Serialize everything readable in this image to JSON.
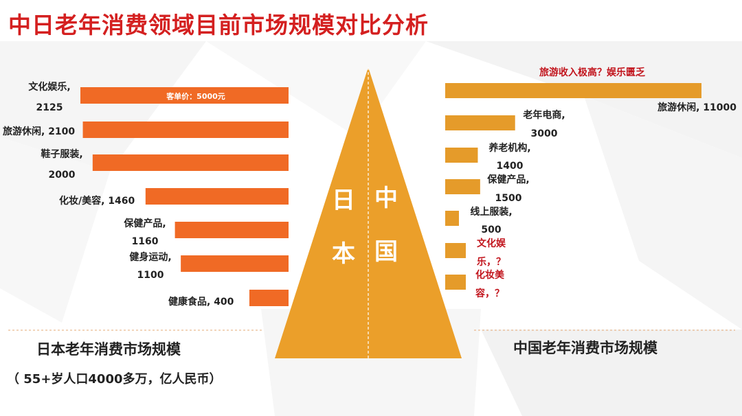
{
  "title": "中日老年消费领域目前市场规模对比分析",
  "colors": {
    "title": "#d42020",
    "japan_bar": "#f06a25",
    "china_bar": "#e59b2a",
    "pyramid": "#eb9f2a",
    "question": "#c2161e"
  },
  "pyramid": {
    "left_label": [
      "日",
      "本"
    ],
    "right_label": [
      "中",
      "国"
    ]
  },
  "japan": {
    "title": "日本老年消费市场规模",
    "subtitle": "（ 55+岁人口4000多万，亿人民币）",
    "unit_note": "客单价：5000元"
  },
  "china": {
    "title": "中国老年消费市场规模",
    "highlight": "旅游收入极高？娱乐匮乏"
  },
  "chart_data": [
    {
      "type": "bar",
      "orientation": "horizontal",
      "direction": "right-to-left",
      "title": "日本老年消费市场规模",
      "categories": [
        "文化娱乐",
        "旅游休闲",
        "鞋子服装",
        "化妆/美容",
        "保健产品",
        "健身运动",
        "健康食品"
      ],
      "values": [
        2125,
        2100,
        2000,
        1460,
        1160,
        1100,
        400
      ],
      "labels": [
        [
          "文化娱乐,",
          "2125"
        ],
        [
          "旅游休闲, 2100"
        ],
        [
          "鞋子服装,",
          "2000"
        ],
        [
          "化妆/美容, 1460"
        ],
        [
          "保健产品,",
          "1160"
        ],
        [
          "健身运动,",
          "1100"
        ],
        [
          "健康食品, 400"
        ]
      ]
    },
    {
      "type": "bar",
      "orientation": "horizontal",
      "direction": "left-to-right",
      "title": "中国老年消费市场规模",
      "categories": [
        "旅游休闲",
        "老年电商",
        "养老机构",
        "保健产品",
        "线上服装",
        "文化娱乐",
        "化妆美容"
      ],
      "values": [
        11000,
        3000,
        1400,
        1500,
        500,
        null,
        null
      ],
      "labels": [
        [
          "旅游休闲, 11000"
        ],
        [
          "老年电商,",
          "3000"
        ],
        [
          "养老机构,",
          "1400"
        ],
        [
          "保健产品,",
          "1500"
        ],
        [
          "线上服装,",
          "500"
        ],
        [
          "文化娱",
          "乐，？"
        ],
        [
          "化妆美",
          "容，？"
        ]
      ],
      "unknown_labels": [
        false,
        false,
        false,
        false,
        false,
        true,
        true
      ]
    }
  ]
}
